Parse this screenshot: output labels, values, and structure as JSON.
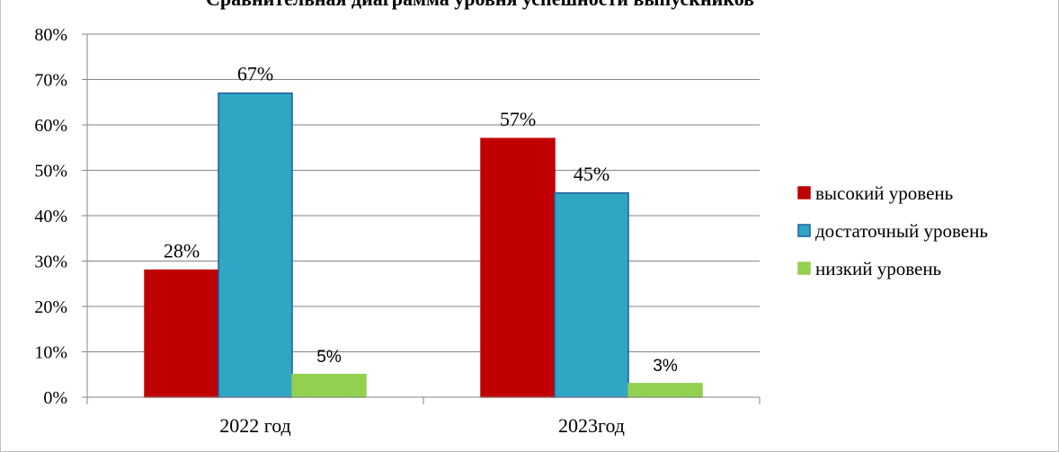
{
  "chart_data": {
    "type": "bar",
    "title": "Сравнительная диаграмма уровня успешности выпускников",
    "categories": [
      "2022 год",
      "2023год"
    ],
    "series": [
      {
        "name": "высокий уровень",
        "values": [
          28,
          57
        ],
        "labels": [
          "28%",
          "57%"
        ],
        "color": "#c00000",
        "stroke": "#c00000"
      },
      {
        "name": "достаточный уровень",
        "values": [
          67,
          45
        ],
        "labels": [
          "67%",
          "45%"
        ],
        "color": "#31a5c4",
        "stroke": "#1f5fa0"
      },
      {
        "name": "низкий уровень",
        "values": [
          5,
          3
        ],
        "labels": [
          "5%",
          "3%"
        ],
        "color": "#92d050",
        "stroke": "#92d050"
      }
    ],
    "ylim": [
      0,
      80
    ],
    "yticks": [
      "0%",
      "10%",
      "20%",
      "30%",
      "40%",
      "50%",
      "60%",
      "70%",
      "80%"
    ],
    "grid": true,
    "legend": "right",
    "gridline_color": "#868686"
  }
}
